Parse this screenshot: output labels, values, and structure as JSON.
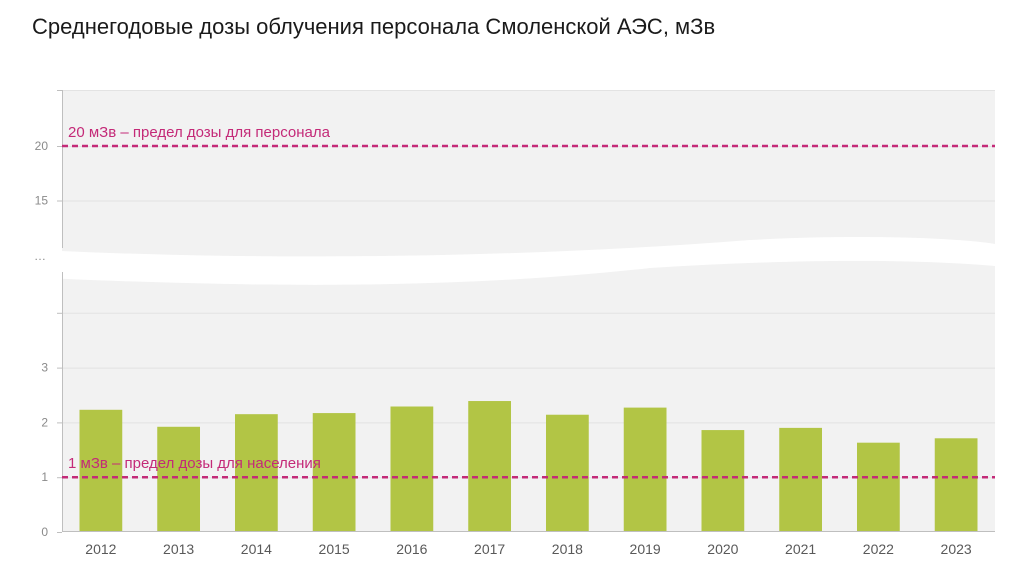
{
  "chart_data": {
    "type": "bar",
    "title": "Среднегодовые дозы облучения персонала Смоленской АЭС, мЗв",
    "categories": [
      "2012",
      "2013",
      "2014",
      "2015",
      "2016",
      "2017",
      "2018",
      "2019",
      "2020",
      "2021",
      "2022",
      "2023"
    ],
    "series": [
      {
        "values": [
          2.23,
          1.92,
          2.15,
          2.17,
          2.29,
          2.39,
          2.14,
          2.27,
          1.86,
          1.9,
          1.63,
          1.71
        ]
      }
    ],
    "axis_break": true,
    "lower_y_ticks": [
      "0",
      "1",
      "2",
      "3"
    ],
    "upper_y_ticks": [
      "15",
      "20"
    ],
    "break_marker": "…",
    "ylim_lower": [
      0,
      4
    ],
    "ylim_upper": [
      10,
      24
    ],
    "reference_lines": [
      {
        "value": 20,
        "label": "20 мЗв – предел дозы для персонала"
      },
      {
        "value": 1,
        "label": "1 мЗв – предел дозы для населения"
      }
    ],
    "grid": true,
    "colors": {
      "bar": "#b2c545",
      "reference": "#c42a78",
      "plot_bg": "#f2f2f2"
    }
  }
}
